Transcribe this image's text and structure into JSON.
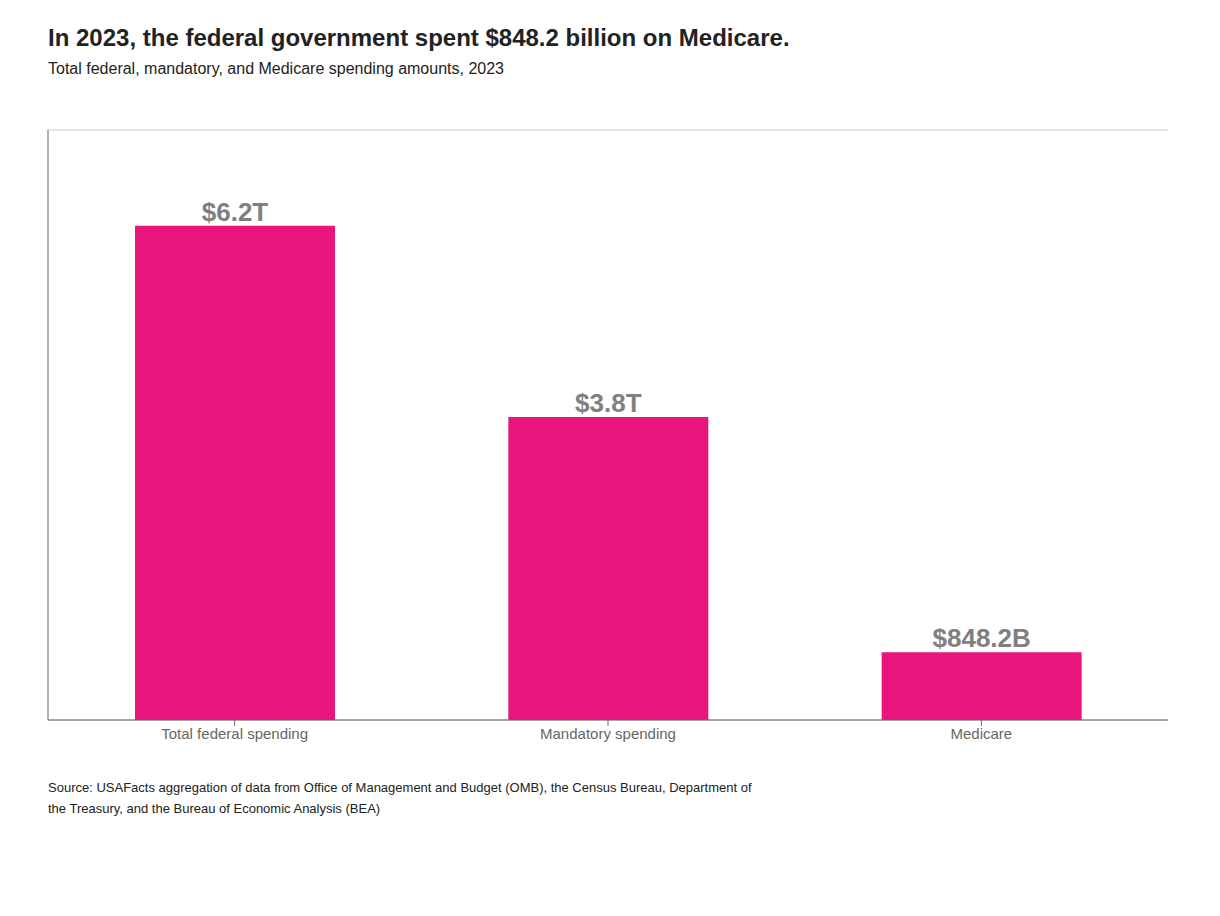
{
  "chart_data": {
    "type": "bar",
    "title": "In 2023, the federal government spent $848.2 billion on Medicare.",
    "subtitle": "Total federal, mandatory, and Medicare spending amounts, 2023",
    "source": "Source: USAFacts aggregation of data from Office of Management and Budget (OMB), the Census Bureau, Department of\nthe Treasury, and the Bureau of Economic Analysis (BEA)",
    "categories": [
      "Total federal spending",
      "Mandatory spending",
      "Medicare"
    ],
    "values": [
      6200,
      3800,
      848.2
    ],
    "value_labels": [
      "$6.2T",
      "$3.8T",
      "$848.2B"
    ],
    "data_labels": true,
    "color": "#E8157D",
    "ylim": [
      0,
      7400
    ],
    "yticks": [
      0,
      1000,
      2000,
      3000,
      4000,
      5000,
      6000,
      7000
    ],
    "grid": true,
    "tick_labels": "x"
  }
}
